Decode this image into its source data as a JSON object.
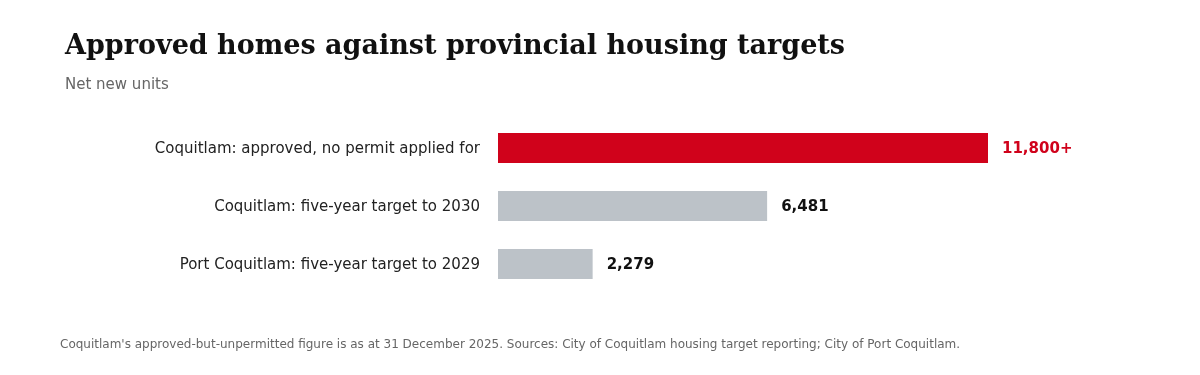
{
  "chart_data": {
    "type": "bar",
    "orientation": "horizontal",
    "title": "Approved homes against provincial housing targets",
    "subtitle": "Net new units",
    "categories": [
      "Coquitlam: approved, no permit applied for",
      "Coquitlam: five-year target to 2030",
      "Port Coquitlam: five-year target to 2029"
    ],
    "values": [
      11800,
      6481,
      2279
    ],
    "colors": [
      "#d0021b",
      "#bcc2c8",
      "#bcc2c8"
    ],
    "value_labels": [
      "11,800+",
      "6,481",
      "2,279"
    ],
    "annotations": [
      "Coquitlam's approved-but-unpermitted figure is as at 31 December 2025. Sources: City of Coquitlam housing target reporting; City of Port Coquitlam."
    ]
  }
}
